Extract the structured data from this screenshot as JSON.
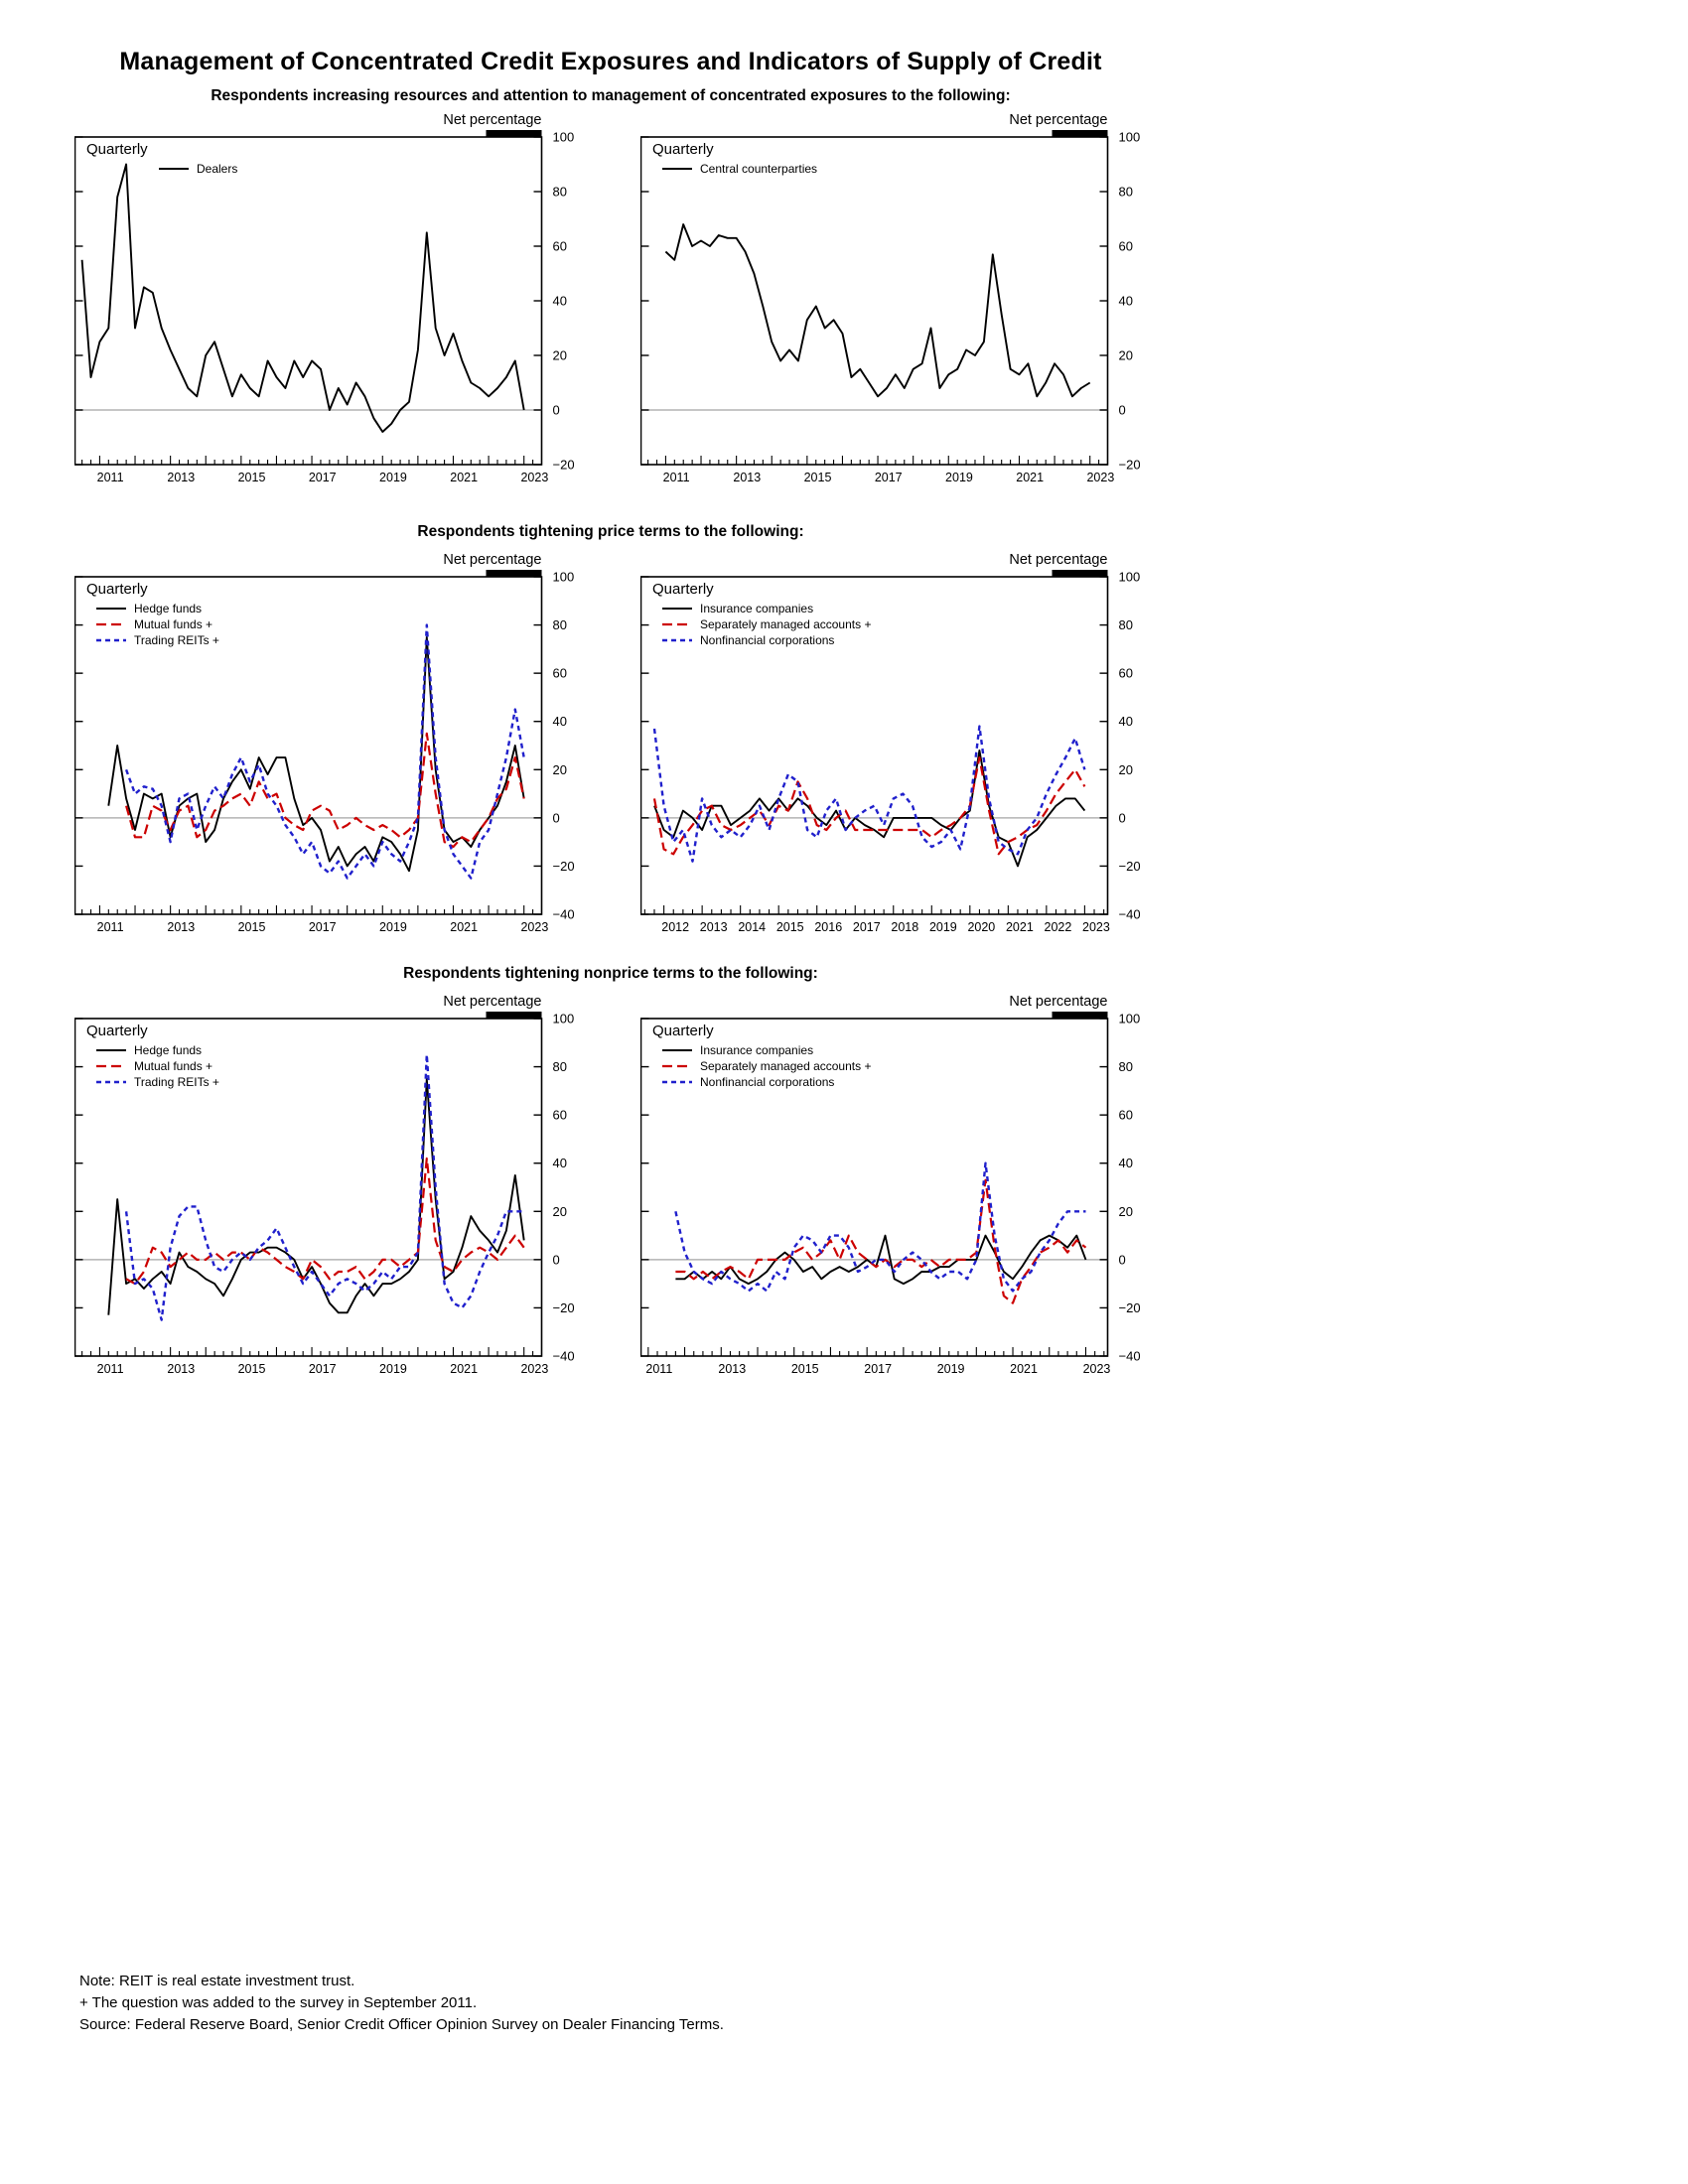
{
  "page": {
    "title": "Management of Concentrated Credit Exposures and Indicators of Supply of Credit",
    "sections": [
      "Respondents increasing resources and attention to management of concentrated exposures to the following:",
      "Respondents tightening price terms to the following:",
      "Respondents tightening nonprice terms to the following:"
    ],
    "notes": [
      "Note:  REIT is real estate investment trust.",
      "+ The question was added to the survey in September 2011.",
      "Source:  Federal Reserve Board, Senior Credit Officer Opinion Survey on Dealer Financing Terms."
    ]
  },
  "colors": {
    "black": "#000000",
    "red": "#cc0000",
    "blue": "#2020cc",
    "zero_line": "#b3b3b3"
  },
  "chart_data": [
    {
      "type": "line",
      "panel": "top-left",
      "corner_label": "Quarterly",
      "axis_label": "Net percentage",
      "ylim": [
        -20,
        100
      ],
      "yticks": [
        100,
        80,
        60,
        40,
        20,
        0,
        -20
      ],
      "xlim": [
        2010.3,
        2023.5
      ],
      "year_labels": [
        2011,
        2013,
        2015,
        2017,
        2019,
        2021,
        2023
      ],
      "zero_line": true,
      "series": [
        {
          "name": "Dealers",
          "color": "#000000",
          "dash": "solid",
          "x_start": 2010.5,
          "x_step": 0.25,
          "values": [
            55,
            12,
            25,
            30,
            78,
            90,
            30,
            45,
            43,
            30,
            22,
            15,
            8,
            5,
            20,
            25,
            15,
            5,
            13,
            8,
            5,
            18,
            12,
            8,
            18,
            12,
            18,
            15,
            0,
            8,
            2,
            10,
            5,
            -3,
            -8,
            -5,
            0,
            3,
            22,
            65,
            30,
            20,
            28,
            18,
            10,
            8,
            5,
            8,
            12,
            18,
            0
          ]
        }
      ]
    },
    {
      "type": "line",
      "panel": "top-right",
      "corner_label": "Quarterly",
      "axis_label": "Net percentage",
      "ylim": [
        -20,
        100
      ],
      "yticks": [
        100,
        80,
        60,
        40,
        20,
        0,
        -20
      ],
      "xlim": [
        2010.3,
        2023.5
      ],
      "year_labels": [
        2011,
        2013,
        2015,
        2017,
        2019,
        2021,
        2023
      ],
      "zero_line": true,
      "series": [
        {
          "name": "Central counterparties",
          "color": "#000000",
          "dash": "solid",
          "x_start": 2011.0,
          "x_step": 0.25,
          "values": [
            58,
            55,
            68,
            60,
            62,
            60,
            64,
            63,
            63,
            58,
            50,
            38,
            25,
            18,
            22,
            18,
            33,
            38,
            30,
            33,
            28,
            12,
            15,
            10,
            5,
            8,
            13,
            8,
            15,
            17,
            30,
            8,
            13,
            15,
            22,
            20,
            25,
            57,
            35,
            15,
            13,
            17,
            5,
            10,
            17,
            13,
            5,
            8,
            10
          ]
        }
      ]
    },
    {
      "type": "line",
      "panel": "middle-left",
      "corner_label": "Quarterly",
      "axis_label": "Net percentage",
      "ylim": [
        -40,
        100
      ],
      "yticks": [
        100,
        80,
        60,
        40,
        20,
        0,
        -20,
        -40
      ],
      "xlim": [
        2010.3,
        2023.5
      ],
      "year_labels": [
        2011,
        2013,
        2015,
        2017,
        2019,
        2021,
        2023
      ],
      "zero_line": true,
      "series": [
        {
          "name": "Hedge funds",
          "color": "#000000",
          "dash": "solid",
          "x_start": 2011.25,
          "x_step": 0.25,
          "values": [
            5,
            30,
            8,
            -5,
            10,
            8,
            10,
            -8,
            5,
            8,
            10,
            -10,
            -5,
            8,
            15,
            20,
            12,
            25,
            18,
            25,
            25,
            8,
            -3,
            0,
            -5,
            -18,
            -12,
            -20,
            -15,
            -12,
            -18,
            -8,
            -10,
            -15,
            -22,
            -5,
            75,
            20,
            -5,
            -10,
            -8,
            -12,
            -5,
            0,
            5,
            15,
            30,
            8
          ]
        },
        {
          "name": "Mutual funds +",
          "color": "#cc0000",
          "dash": "dash",
          "x_start": 2011.75,
          "x_step": 0.25,
          "values": [
            5,
            -8,
            -8,
            5,
            3,
            -5,
            3,
            5,
            -8,
            -5,
            3,
            5,
            8,
            10,
            5,
            15,
            8,
            10,
            0,
            -3,
            -5,
            3,
            5,
            3,
            -5,
            -3,
            0,
            -3,
            -5,
            -3,
            -5,
            -8,
            -5,
            0,
            35,
            10,
            -10,
            -12,
            -8,
            -10,
            -5,
            0,
            8,
            12,
            25,
            8
          ]
        },
        {
          "name": "Trading REITs +",
          "color": "#2020cc",
          "dash": "dense-dash",
          "x_start": 2011.75,
          "x_step": 0.25,
          "values": [
            20,
            10,
            13,
            12,
            5,
            -10,
            8,
            10,
            -5,
            5,
            13,
            8,
            18,
            25,
            15,
            22,
            10,
            5,
            -3,
            -8,
            -15,
            -10,
            -20,
            -23,
            -18,
            -25,
            -20,
            -15,
            -20,
            -10,
            -15,
            -18,
            -10,
            0,
            80,
            25,
            -5,
            -15,
            -20,
            -25,
            -10,
            -5,
            10,
            25,
            45,
            25
          ]
        }
      ]
    },
    {
      "type": "line",
      "panel": "middle-right",
      "corner_label": "Quarterly",
      "axis_label": "Net percentage",
      "ylim": [
        -40,
        100
      ],
      "yticks": [
        100,
        80,
        60,
        40,
        20,
        0,
        -20,
        -40
      ],
      "xlim": [
        2011.4,
        2023.6
      ],
      "year_labels": [
        2012,
        2013,
        2014,
        2015,
        2016,
        2017,
        2018,
        2019,
        2020,
        2021,
        2022,
        2023
      ],
      "zero_line": true,
      "series": [
        {
          "name": "Insurance companies",
          "color": "#000000",
          "dash": "solid",
          "x_start": 2011.75,
          "x_step": 0.25,
          "values": [
            5,
            -5,
            -8,
            3,
            0,
            -5,
            5,
            5,
            -3,
            0,
            3,
            8,
            3,
            8,
            3,
            8,
            5,
            0,
            -3,
            3,
            -5,
            0,
            -3,
            -5,
            -8,
            0,
            0,
            0,
            0,
            0,
            -3,
            -5,
            0,
            3,
            28,
            5,
            -8,
            -10,
            -20,
            -8,
            -5,
            0,
            5,
            8,
            8,
            3
          ]
        },
        {
          "name": "Separately managed accounts +",
          "color": "#cc0000",
          "dash": "dash",
          "x_start": 2011.75,
          "x_step": 0.25,
          "values": [
            8,
            -13,
            -15,
            -8,
            -3,
            3,
            5,
            -3,
            -5,
            -3,
            0,
            3,
            -3,
            5,
            3,
            15,
            8,
            -3,
            -5,
            0,
            3,
            -5,
            -5,
            -5,
            -5,
            -5,
            -5,
            -5,
            -5,
            -8,
            -5,
            -3,
            0,
            5,
            25,
            3,
            -15,
            -10,
            -8,
            -5,
            -3,
            3,
            10,
            15,
            20,
            13
          ]
        },
        {
          "name": "Nonfinancial corporations",
          "color": "#2020cc",
          "dash": "dense-dash",
          "x_start": 2011.75,
          "x_step": 0.25,
          "values": [
            37,
            5,
            -10,
            -5,
            -18,
            8,
            -3,
            -8,
            -5,
            -8,
            -3,
            5,
            -5,
            8,
            18,
            15,
            -5,
            -8,
            3,
            8,
            -5,
            0,
            3,
            5,
            -3,
            8,
            10,
            5,
            -8,
            -12,
            -10,
            -5,
            -13,
            5,
            38,
            8,
            -10,
            -13,
            -15,
            -5,
            0,
            10,
            18,
            25,
            33,
            20
          ]
        }
      ]
    },
    {
      "type": "line",
      "panel": "bottom-left",
      "corner_label": "Quarterly",
      "axis_label": "Net percentage",
      "ylim": [
        -40,
        100
      ],
      "yticks": [
        100,
        80,
        60,
        40,
        20,
        0,
        -20,
        -40
      ],
      "xlim": [
        2010.3,
        2023.5
      ],
      "year_labels": [
        2011,
        2013,
        2015,
        2017,
        2019,
        2021,
        2023
      ],
      "zero_line": true,
      "series": [
        {
          "name": "Hedge funds",
          "color": "#000000",
          "dash": "solid",
          "x_start": 2011.25,
          "x_step": 0.25,
          "values": [
            -23,
            25,
            -10,
            -8,
            -12,
            -8,
            -5,
            -10,
            3,
            -3,
            -5,
            -8,
            -10,
            -15,
            -8,
            0,
            3,
            3,
            5,
            5,
            3,
            0,
            -8,
            -3,
            -10,
            -18,
            -22,
            -22,
            -15,
            -10,
            -15,
            -10,
            -10,
            -8,
            -5,
            0,
            75,
            25,
            -8,
            -5,
            5,
            18,
            12,
            8,
            3,
            12,
            35,
            8
          ]
        },
        {
          "name": "Mutual funds +",
          "color": "#cc0000",
          "dash": "dash",
          "x_start": 2011.75,
          "x_step": 0.25,
          "values": [
            -8,
            -10,
            -5,
            5,
            3,
            -3,
            0,
            3,
            0,
            0,
            3,
            0,
            3,
            3,
            0,
            5,
            3,
            0,
            -3,
            -5,
            -8,
            0,
            -3,
            -8,
            -5,
            -5,
            -3,
            -8,
            -5,
            0,
            0,
            -3,
            0,
            3,
            42,
            8,
            -3,
            -5,
            0,
            3,
            5,
            3,
            0,
            5,
            10,
            5
          ]
        },
        {
          "name": "Trading REITs +",
          "color": "#2020cc",
          "dash": "dense-dash",
          "x_start": 2011.75,
          "x_step": 0.25,
          "values": [
            20,
            -10,
            -8,
            -12,
            -25,
            5,
            18,
            22,
            22,
            8,
            -3,
            -5,
            0,
            3,
            0,
            5,
            8,
            13,
            5,
            -3,
            -10,
            -5,
            -10,
            -15,
            -10,
            -8,
            -10,
            -13,
            -10,
            -5,
            -8,
            -3,
            -3,
            3,
            85,
            30,
            -10,
            -18,
            -20,
            -15,
            -5,
            3,
            10,
            20,
            20,
            20
          ]
        }
      ]
    },
    {
      "type": "line",
      "panel": "bottom-right",
      "corner_label": "Quarterly",
      "axis_label": "Net percentage",
      "ylim": [
        -40,
        100
      ],
      "yticks": [
        100,
        80,
        60,
        40,
        20,
        0,
        -20,
        -40
      ],
      "xlim": [
        2010.8,
        2023.6
      ],
      "year_labels": [
        2011,
        2013,
        2015,
        2017,
        2019,
        2021,
        2023
      ],
      "zero_line": true,
      "series": [
        {
          "name": "Insurance companies",
          "color": "#000000",
          "dash": "solid",
          "x_start": 2011.75,
          "x_step": 0.25,
          "values": [
            -8,
            -8,
            -5,
            -8,
            -5,
            -8,
            -3,
            -8,
            -10,
            -8,
            -5,
            0,
            3,
            0,
            -5,
            -3,
            -8,
            -5,
            -3,
            -5,
            -3,
            0,
            -3,
            10,
            -8,
            -10,
            -8,
            -5,
            -5,
            -3,
            -3,
            0,
            0,
            0,
            10,
            3,
            -5,
            -8,
            -3,
            3,
            8,
            10,
            8,
            5,
            10,
            0
          ]
        },
        {
          "name": "Separately managed accounts +",
          "color": "#cc0000",
          "dash": "dash",
          "x_start": 2011.75,
          "x_step": 0.25,
          "values": [
            -5,
            -5,
            -8,
            -5,
            -8,
            -5,
            -3,
            -5,
            -8,
            0,
            0,
            0,
            0,
            3,
            5,
            0,
            3,
            8,
            0,
            10,
            3,
            0,
            -3,
            0,
            -3,
            0,
            0,
            -3,
            0,
            -3,
            0,
            0,
            0,
            3,
            33,
            5,
            -15,
            -18,
            -8,
            -3,
            3,
            5,
            8,
            3,
            8,
            5
          ]
        },
        {
          "name": "Nonfinancial corporations",
          "color": "#2020cc",
          "dash": "dense-dash",
          "x_start": 2011.75,
          "x_step": 0.25,
          "values": [
            20,
            3,
            -5,
            -8,
            -10,
            -5,
            -8,
            -10,
            -13,
            -10,
            -13,
            -5,
            -8,
            5,
            10,
            8,
            3,
            10,
            10,
            5,
            -5,
            -3,
            0,
            0,
            -5,
            0,
            3,
            0,
            -5,
            -8,
            -5,
            -5,
            -8,
            0,
            40,
            10,
            -8,
            -13,
            -8,
            -5,
            3,
            8,
            15,
            20,
            20,
            20
          ]
        }
      ]
    }
  ]
}
